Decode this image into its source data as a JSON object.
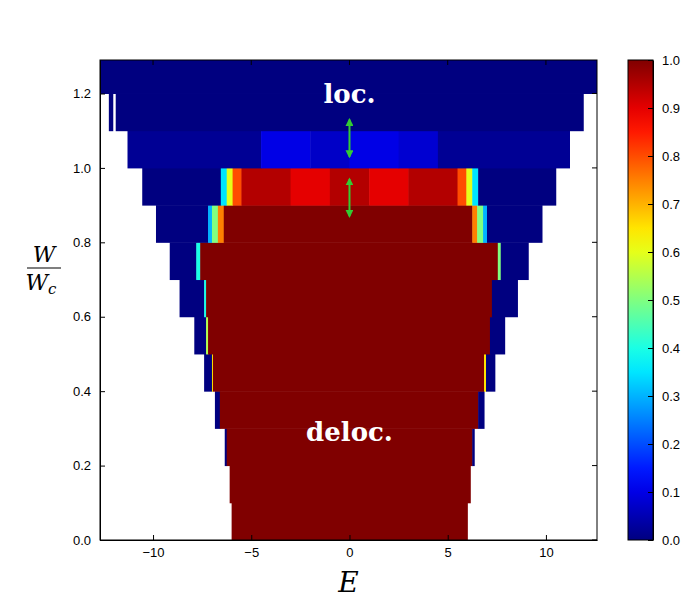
{
  "chart_data": {
    "type": "heatmap",
    "xlabel": "E",
    "ylabel": {
      "numerator": "W",
      "denominator": "W",
      "subscript": "c"
    },
    "xlim": [
      -12.7,
      12.6
    ],
    "ylim": [
      0,
      1.29
    ],
    "xticks": [
      {
        "value": -10,
        "label": "−10"
      },
      {
        "value": -5,
        "label": "−5"
      },
      0,
      5,
      10
    ],
    "yticks": [
      {
        "value": 0,
        "label": "0.0"
      },
      {
        "value": 0.2,
        "label": "0.2"
      },
      {
        "value": 0.4,
        "label": "0.4"
      },
      {
        "value": 0.6,
        "label": "0.6"
      },
      {
        "value": 0.8,
        "label": "0.8"
      },
      {
        "value": 1.0,
        "label": "1.0"
      },
      {
        "value": 1.2,
        "label": "1.2"
      }
    ],
    "colorbar": {
      "range": [
        0,
        1
      ],
      "ticks": [
        {
          "value": 0,
          "label": "0.0"
        },
        {
          "value": 0.1,
          "label": "0.1"
        },
        {
          "value": 0.2,
          "label": "0.2"
        },
        {
          "value": 0.3,
          "label": "0.3"
        },
        {
          "value": 0.4,
          "label": "0.4"
        },
        {
          "value": 0.5,
          "label": "0.5"
        },
        {
          "value": 0.6,
          "label": "0.6"
        },
        {
          "value": 0.7,
          "label": "0.7"
        },
        {
          "value": 0.8,
          "label": "0.8"
        },
        {
          "value": 0.9,
          "label": "0.9"
        },
        {
          "value": 1.0,
          "label": "1.0"
        }
      ]
    },
    "annotations": [
      {
        "text": "loc.",
        "x": 0,
        "y": 1.2
      },
      {
        "text": "deloc.",
        "x": 0,
        "y": 0.29
      }
    ],
    "arrows": [
      {
        "x": 0,
        "y": [
          1.03,
          1.13
        ]
      },
      {
        "x": 0,
        "y": [
          0.87,
          0.97
        ]
      }
    ],
    "rows": [
      {
        "y": [
          0,
          0.1
        ],
        "cells": [
          {
            "x": [
              -6.0,
              6.0
            ],
            "value": 1
          }
        ]
      },
      {
        "y": [
          0.1,
          0.2
        ],
        "cells": [
          {
            "x": [
              -6.1,
              6.15
            ],
            "value": 1
          }
        ]
      },
      {
        "y": [
          0.2,
          0.3
        ],
        "cells": [
          {
            "x": [
              -6.35,
              -6.25
            ],
            "value": 0
          },
          {
            "x": [
              -6.25,
              6.25
            ],
            "value": 1
          },
          {
            "x": [
              6.25,
              6.35
            ],
            "value": 0
          }
        ]
      },
      {
        "y": [
          0.3,
          0.4
        ],
        "cells": [
          {
            "x": [
              -6.85,
              -6.6
            ],
            "value": 0
          },
          {
            "x": [
              -6.6,
              6.55
            ],
            "value": 1
          },
          {
            "x": [
              6.55,
              6.85
            ],
            "value": 0
          }
        ]
      },
      {
        "y": [
          0.4,
          0.5
        ],
        "cells": [
          {
            "x": [
              -7.4,
              -7.0
            ],
            "value": 0
          },
          {
            "x": [
              -7.0,
              -6.95
            ],
            "value": 0.65
          },
          {
            "x": [
              -6.95,
              6.85
            ],
            "value": 1
          },
          {
            "x": [
              6.85,
              6.95
            ],
            "value": 0.65
          },
          {
            "x": [
              6.95,
              7.4
            ],
            "value": 0
          }
        ]
      },
      {
        "y": [
          0.5,
          0.6
        ],
        "cells": [
          {
            "x": [
              -7.9,
              -7.3
            ],
            "value": 0
          },
          {
            "x": [
              -7.3,
              -7.2
            ],
            "value": 0.55
          },
          {
            "x": [
              -7.2,
              7.15
            ],
            "value": 1
          },
          {
            "x": [
              7.15,
              7.9
            ],
            "value": 0
          }
        ]
      },
      {
        "y": [
          0.6,
          0.7
        ],
        "cells": [
          {
            "x": [
              -8.65,
              -7.4
            ],
            "value": 0
          },
          {
            "x": [
              -7.4,
              -7.3
            ],
            "value": 0.4
          },
          {
            "x": [
              -7.3,
              7.25
            ],
            "value": 1
          },
          {
            "x": [
              7.25,
              8.55
            ],
            "value": 0
          }
        ]
      },
      {
        "y": [
          0.7,
          0.8
        ],
        "cells": [
          {
            "x": [
              -9.15,
              -7.8
            ],
            "value": 0
          },
          {
            "x": [
              -7.8,
              -7.6
            ],
            "value": 0.4
          },
          {
            "x": [
              -7.6,
              7.55
            ],
            "value": 1
          },
          {
            "x": [
              7.55,
              7.7
            ],
            "value": 0.5
          },
          {
            "x": [
              7.7,
              9.1
            ],
            "value": 0
          }
        ]
      },
      {
        "y": [
          0.8,
          0.9
        ],
        "cells": [
          {
            "x": [
              -9.85,
              -7.2
            ],
            "value": 0
          },
          {
            "x": [
              -7.2,
              -7.0
            ],
            "value": 0.3
          },
          {
            "x": [
              -7.0,
              -6.7
            ],
            "value": 0.5
          },
          {
            "x": [
              -6.7,
              -6.4
            ],
            "value": 0.75
          },
          {
            "x": [
              -6.4,
              6.25
            ],
            "value": 1
          },
          {
            "x": [
              6.25,
              6.5
            ],
            "value": 0.75
          },
          {
            "x": [
              6.5,
              6.8
            ],
            "value": 0.5
          },
          {
            "x": [
              6.8,
              7.0
            ],
            "value": 0.3
          },
          {
            "x": [
              7.0,
              9.8
            ],
            "value": 0
          }
        ]
      },
      {
        "y": [
          0.9,
          1.0
        ],
        "cells": [
          {
            "x": [
              -10.55,
              -6.55
            ],
            "value": 0
          },
          {
            "x": [
              -6.55,
              -6.25
            ],
            "value": 0.35
          },
          {
            "x": [
              -6.25,
              -5.95
            ],
            "value": 0.6
          },
          {
            "x": [
              -5.95,
              -5.5
            ],
            "value": 0.8
          },
          {
            "x": [
              -5.5,
              -3
            ],
            "value": 0.95
          },
          {
            "x": [
              -3,
              -1
            ],
            "value": 0.9
          },
          {
            "x": [
              -1,
              1
            ],
            "value": 0.95
          },
          {
            "x": [
              1,
              3
            ],
            "value": 0.9
          },
          {
            "x": [
              3,
              5.5
            ],
            "value": 0.95
          },
          {
            "x": [
              5.5,
              5.95
            ],
            "value": 0.8
          },
          {
            "x": [
              5.95,
              6.25
            ],
            "value": 0.6
          },
          {
            "x": [
              6.25,
              6.55
            ],
            "value": 0.35
          },
          {
            "x": [
              6.55,
              10.5
            ],
            "value": 0
          }
        ]
      },
      {
        "y": [
          1.0,
          1.1
        ],
        "cells": [
          {
            "x": [
              -11.3,
              -4.5
            ],
            "value": 0.02
          },
          {
            "x": [
              -4.5,
              -2
            ],
            "value": 0.1
          },
          {
            "x": [
              -2,
              0
            ],
            "value": 0.07
          },
          {
            "x": [
              0,
              2.5
            ],
            "value": 0.1
          },
          {
            "x": [
              2.5,
              4.5
            ],
            "value": 0.08
          },
          {
            "x": [
              4.5,
              11.2
            ],
            "value": 0.02
          }
        ]
      },
      {
        "y": [
          1.1,
          1.2
        ],
        "cells": [
          {
            "x": [
              -12.25,
              -12.05
            ],
            "value": 0
          },
          {
            "x": [
              -11.9,
              11.9
            ],
            "value": 0
          }
        ]
      },
      {
        "y": [
          1.2,
          1.29
        ],
        "cells": [
          {
            "x": [
              -12.7,
              12.6
            ],
            "value": 0
          }
        ]
      }
    ]
  }
}
